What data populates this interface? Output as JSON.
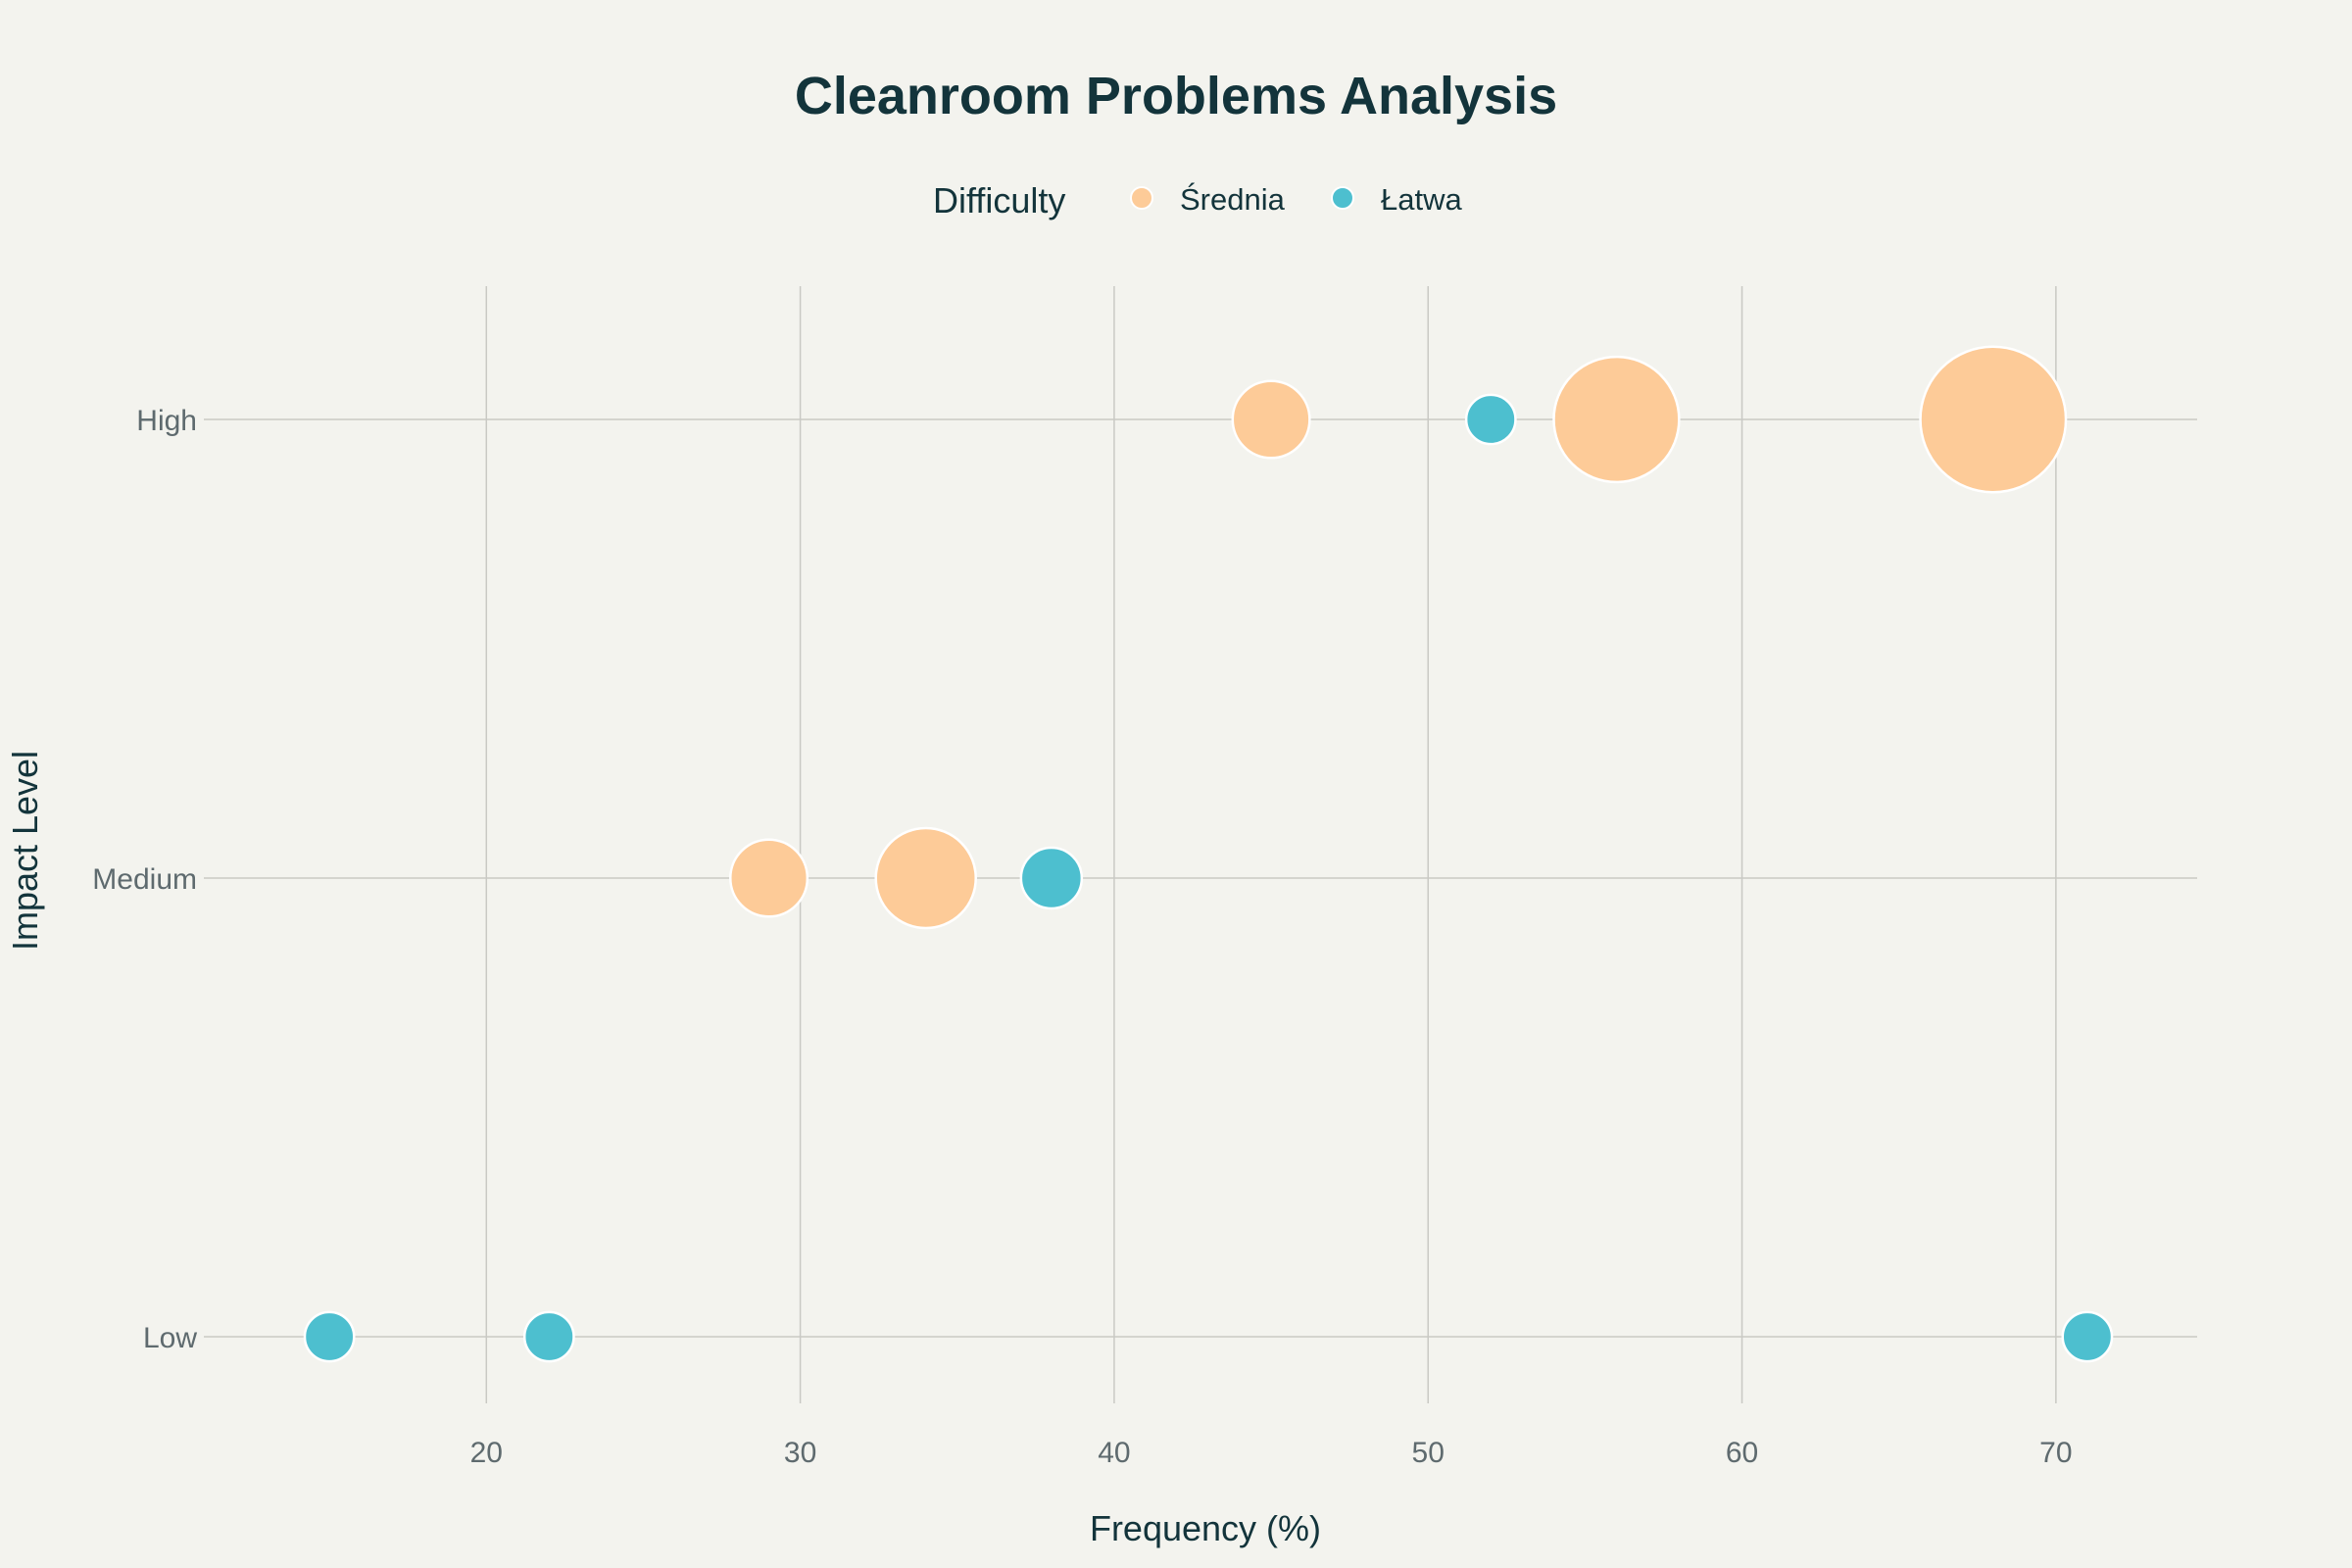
{
  "chart_data": {
    "type": "scatter",
    "title": "Cleanroom Problems Analysis",
    "xlabel": "Frequency (%)",
    "ylabel": "Impact Level",
    "xlim": [
      11,
      74.5
    ],
    "x_ticks": [
      20,
      30,
      40,
      50,
      60,
      70
    ],
    "y_categories": [
      "Low",
      "Medium",
      "High"
    ],
    "grid": true,
    "legend": {
      "title": "Difficulty",
      "placement": "top-center"
    },
    "series": [
      {
        "name": "Średnia",
        "color": "#fdcb98",
        "points": [
          {
            "x": 45,
            "y": "High",
            "size": 2
          },
          {
            "x": 56,
            "y": "High",
            "size": 7
          },
          {
            "x": 68,
            "y": "High",
            "size": 10
          },
          {
            "x": 29,
            "y": "Medium",
            "size": 2
          },
          {
            "x": 34,
            "y": "Medium",
            "size": 4
          }
        ]
      },
      {
        "name": "Łatwa",
        "color": "#4dbfcf",
        "points": [
          {
            "x": 52,
            "y": "High",
            "size": 0.5
          },
          {
            "x": 38,
            "y": "Medium",
            "size": 1
          },
          {
            "x": 15,
            "y": "Low",
            "size": 0.5
          },
          {
            "x": 22,
            "y": "Low",
            "size": 0.5
          },
          {
            "x": 71,
            "y": "Low",
            "size": 0.5
          }
        ]
      }
    ]
  }
}
